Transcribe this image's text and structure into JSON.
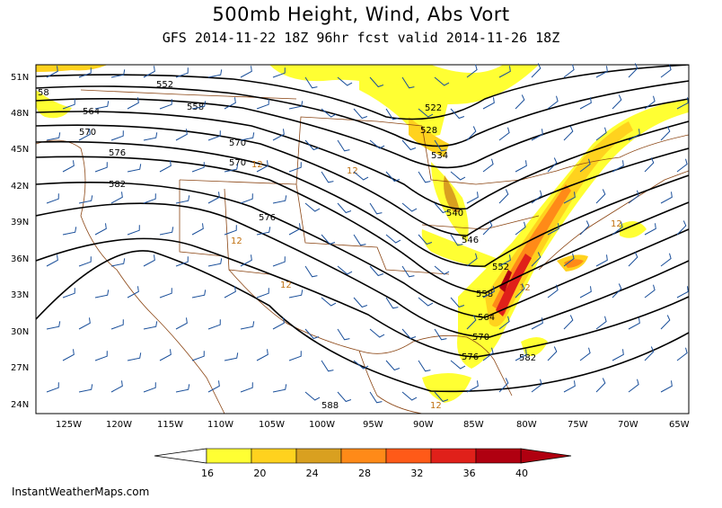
{
  "title": "500mb Height, Wind, Abs Vort",
  "subtitle": "GFS 2014-11-22 18Z 96hr fcst valid 2014-11-26 18Z",
  "credit": "InstantWeatherMaps.com",
  "lat_labels": [
    "51N",
    "48N",
    "45N",
    "42N",
    "39N",
    "36N",
    "33N",
    "30N",
    "27N",
    "24N"
  ],
  "lon_labels": [
    "125W",
    "120W",
    "115W",
    "110W",
    "105W",
    "100W",
    "95W",
    "90W",
    "85W",
    "80W",
    "75W",
    "70W",
    "65W"
  ],
  "height_contours": [
    {
      "label": "522"
    },
    {
      "label": "528"
    },
    {
      "label": "534"
    },
    {
      "label": "540"
    },
    {
      "label": "546"
    },
    {
      "label": "552"
    },
    {
      "label": "552"
    },
    {
      "label": "558"
    },
    {
      "label": "558"
    },
    {
      "label": "564"
    },
    {
      "label": "564"
    },
    {
      "label": "570"
    },
    {
      "label": "570"
    },
    {
      "label": "570"
    },
    {
      "label": "576"
    },
    {
      "label": "576"
    },
    {
      "label": "576"
    },
    {
      "label": "582"
    },
    {
      "label": "582"
    },
    {
      "label": "588"
    },
    {
      "label": "58"
    }
  ],
  "vort_labels": [
    "12",
    "12",
    "12",
    "12",
    "12",
    "12",
    "12"
  ],
  "colorbar": {
    "ticks": [
      "16",
      "20",
      "24",
      "28",
      "32",
      "36",
      "40"
    ],
    "colors": [
      "#ffff33",
      "#ffd21e",
      "#d9a020",
      "#ff8a18",
      "#ff5a18",
      "#e0201a",
      "#b00010"
    ]
  }
}
